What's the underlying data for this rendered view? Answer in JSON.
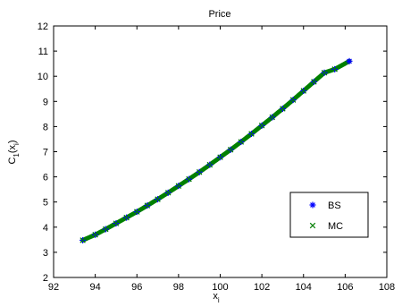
{
  "chart_data": {
    "type": "scatter",
    "title": "Price",
    "xlabel": "x",
    "xlabel_sub": "i",
    "ylabel": "C",
    "ylabel_sub1": "1",
    "ylabel_arg": "(x",
    "ylabel_arg_sub": "i",
    "ylabel_close": ")",
    "xlim": [
      92,
      108
    ],
    "ylim": [
      2,
      12
    ],
    "x_ticks": [
      92,
      94,
      96,
      98,
      100,
      102,
      104,
      106,
      108
    ],
    "y_ticks": [
      2,
      3,
      4,
      5,
      6,
      7,
      8,
      9,
      10,
      11,
      12
    ],
    "legend_position": "lower-right",
    "series": [
      {
        "name": "BS",
        "marker": "*",
        "color": "#0000ff",
        "x": [
          93.4,
          94.0,
          94.5,
          95.0,
          95.5,
          96.0,
          96.5,
          97.0,
          97.5,
          98.0,
          98.5,
          99.0,
          99.5,
          100.0,
          100.5,
          101.0,
          101.5,
          102.0,
          102.5,
          103.0,
          103.5,
          104.0,
          104.5,
          105.0,
          105.5,
          106.2
        ],
        "y": [
          3.48,
          3.7,
          3.92,
          4.15,
          4.38,
          4.61,
          4.86,
          5.11,
          5.37,
          5.64,
          5.91,
          6.19,
          6.48,
          6.78,
          7.08,
          7.39,
          7.71,
          8.04,
          8.37,
          8.71,
          9.06,
          9.42,
          9.78,
          10.14,
          10.28,
          10.6
        ]
      },
      {
        "name": "MC",
        "marker": "x",
        "color": "#008000",
        "x": [
          93.4,
          94.0,
          94.5,
          95.0,
          95.5,
          96.0,
          96.5,
          97.0,
          97.5,
          98.0,
          98.5,
          99.0,
          99.5,
          100.0,
          100.5,
          101.0,
          101.5,
          102.0,
          102.5,
          103.0,
          103.5,
          104.0,
          104.5,
          105.0,
          105.5
        ],
        "y": [
          3.48,
          3.7,
          3.92,
          4.15,
          4.38,
          4.61,
          4.86,
          5.11,
          5.37,
          5.64,
          5.91,
          6.19,
          6.48,
          6.78,
          7.08,
          7.39,
          7.71,
          8.04,
          8.37,
          8.71,
          9.06,
          9.42,
          9.78,
          10.14,
          10.28
        ]
      }
    ],
    "curve_range": [
      93.4,
      106.2
    ]
  }
}
